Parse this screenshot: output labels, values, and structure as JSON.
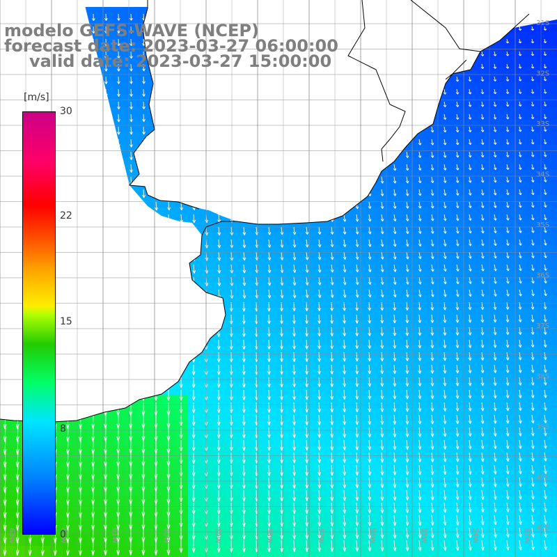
{
  "title": {
    "line1": "modelo GEFS-WAVE (NCEP)",
    "line2": "forecast date: 2023-03-27 06:00:00",
    "line3": "valid date: 2023-03-27 15:00:00"
  },
  "legend": {
    "unit": "[m/s]",
    "ticks": [
      {
        "label": "30",
        "value": 30
      },
      {
        "label": "22",
        "value": 22
      },
      {
        "label": "15",
        "value": 15
      },
      {
        "label": "8",
        "value": 8
      },
      {
        "label": "0",
        "value": 0
      }
    ],
    "range": [
      0,
      30
    ]
  },
  "map": {
    "lat_labels": [
      "31S",
      "32S",
      "33S",
      "34S",
      "35S",
      "36S",
      "37S",
      "38S",
      "39S",
      "40S",
      "41S"
    ],
    "lon_labels": [
      "63W",
      "62W",
      "61W",
      "60W",
      "59W",
      "58W",
      "57W",
      "56W",
      "55W",
      "54W",
      "53W",
      "52W",
      "51W",
      "50W"
    ],
    "colors": {
      "land": "#ffffff",
      "grid": "#8a8a8a",
      "coast": "#000000",
      "arrow": "#ffffff"
    }
  }
}
